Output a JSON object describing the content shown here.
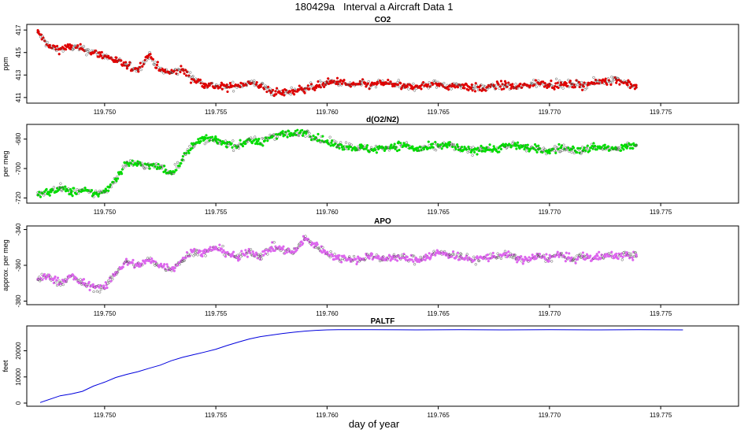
{
  "figure": {
    "title": "180429a   Interval a Aircraft Data 1",
    "xlabel": "day of year"
  },
  "chart_data": [
    {
      "type": "scatter",
      "title": "CO2",
      "ylabel": "ppm",
      "color": "#e00000",
      "xlim": [
        119.7465,
        119.7785
      ],
      "ylim": [
        410.5,
        417.5
      ],
      "xticks": [
        "119.750",
        "119.755",
        "119.760",
        "119.765",
        "119.770",
        "119.775"
      ],
      "yticks": [
        "411",
        "413",
        "415",
        "417"
      ],
      "x": [
        119.747,
        119.7475,
        119.748,
        119.7485,
        119.749,
        119.7495,
        119.75,
        119.7505,
        119.751,
        119.7515,
        119.752,
        119.7525,
        119.753,
        119.7535,
        119.754,
        119.7545,
        119.755,
        119.7555,
        119.756,
        119.7565,
        119.757,
        119.7575,
        119.758,
        119.7585,
        119.759,
        119.7595,
        119.76,
        119.7605,
        119.761,
        119.7615,
        119.762,
        119.7625,
        119.763,
        119.7635,
        119.764,
        119.7645,
        119.765,
        119.7655,
        119.766,
        119.7665,
        119.767,
        119.7675,
        119.768,
        119.7685,
        119.769,
        119.7695,
        119.77,
        119.7705,
        119.771,
        119.7715,
        119.772,
        119.7725,
        119.773,
        119.7735,
        119.7739
      ],
      "y": [
        416.8,
        415.5,
        415.3,
        415.5,
        415.3,
        415.0,
        414.7,
        414.3,
        413.8,
        413.5,
        414.8,
        413.4,
        413.2,
        413.5,
        412.6,
        412.2,
        412.0,
        411.9,
        412.1,
        412.3,
        412.1,
        411.5,
        411.4,
        411.6,
        411.8,
        412.0,
        412.3,
        412.4,
        412.1,
        412.2,
        412.1,
        412.3,
        412.2,
        411.9,
        412.0,
        412.1,
        412.2,
        412.0,
        412.1,
        411.9,
        411.8,
        412.0,
        412.1,
        411.9,
        412.1,
        412.3,
        412.2,
        412.1,
        412.2,
        412.1,
        412.3,
        412.5,
        412.6,
        412.3,
        411.9
      ]
    },
    {
      "type": "scatter",
      "title": "d(O2/N2)",
      "ylabel": "per meg",
      "color": "#00dd00",
      "xlim": [
        119.7465,
        119.7785
      ],
      "ylim": [
        -723.5,
        -670
      ],
      "xticks": [
        "119.750",
        "119.755",
        "119.760",
        "119.765",
        "119.770",
        "119.775"
      ],
      "yticks": [
        "-720",
        "-700",
        "-680"
      ],
      "x": [
        119.747,
        119.7475,
        119.748,
        119.7485,
        119.749,
        119.7495,
        119.75,
        119.7505,
        119.751,
        119.7515,
        119.752,
        119.7525,
        119.753,
        119.7535,
        119.754,
        119.7545,
        119.755,
        119.7555,
        119.756,
        119.7565,
        119.757,
        119.7575,
        119.758,
        119.7585,
        119.759,
        119.7595,
        119.76,
        119.7605,
        119.761,
        119.7615,
        119.762,
        119.7625,
        119.763,
        119.7635,
        119.764,
        119.7645,
        119.765,
        119.7655,
        119.766,
        119.7665,
        119.767,
        119.7675,
        119.768,
        119.7685,
        119.769,
        119.7695,
        119.77,
        119.7705,
        119.771,
        119.7715,
        119.772,
        119.7725,
        119.773,
        119.7735,
        119.7739
      ],
      "y": [
        -718,
        -716,
        -713,
        -716,
        -715,
        -717,
        -716,
        -707,
        -696,
        -697,
        -698,
        -699,
        -703,
        -694,
        -683,
        -680,
        -681,
        -683,
        -685,
        -680,
        -683,
        -678,
        -676,
        -677,
        -675,
        -679,
        -682,
        -684,
        -685,
        -686,
        -687,
        -686,
        -685,
        -684,
        -687,
        -686,
        -685,
        -684,
        -687,
        -688,
        -686,
        -687,
        -685,
        -684,
        -686,
        -687,
        -688,
        -686,
        -687,
        -688,
        -685,
        -686,
        -687,
        -685,
        -684
      ]
    },
    {
      "type": "scatter",
      "title": "APO",
      "ylabel": "approx. per meg",
      "color": "#dd66ee",
      "xlim": [
        119.7465,
        119.7785
      ],
      "ylim": [
        -382,
        -338
      ],
      "xticks": [
        "119.750",
        "119.755",
        "119.760",
        "119.765",
        "119.770",
        "119.775"
      ],
      "yticks": [
        "-380",
        "-360",
        "-340"
      ],
      "x": [
        119.747,
        119.7475,
        119.748,
        119.7485,
        119.749,
        119.7495,
        119.75,
        119.7505,
        119.751,
        119.7515,
        119.752,
        119.7525,
        119.753,
        119.7535,
        119.754,
        119.7545,
        119.755,
        119.7555,
        119.756,
        119.7565,
        119.757,
        119.7575,
        119.758,
        119.7585,
        119.759,
        119.7595,
        119.76,
        119.7605,
        119.761,
        119.7615,
        119.762,
        119.7625,
        119.763,
        119.7635,
        119.764,
        119.7645,
        119.765,
        119.7655,
        119.766,
        119.7665,
        119.767,
        119.7675,
        119.768,
        119.7685,
        119.769,
        119.7695,
        119.77,
        119.7705,
        119.771,
        119.7715,
        119.772,
        119.7725,
        119.773,
        119.7735,
        119.7739
      ],
      "y": [
        -368,
        -366,
        -370,
        -366,
        -370,
        -372,
        -373,
        -364,
        -358,
        -360,
        -357,
        -360,
        -362,
        -357,
        -352,
        -353,
        -350,
        -353,
        -356,
        -352,
        -355,
        -350,
        -351,
        -353,
        -345,
        -349,
        -353,
        -356,
        -356,
        -357,
        -354,
        -357,
        -355,
        -356,
        -357,
        -355,
        -353,
        -354,
        -355,
        -357,
        -356,
        -355,
        -354,
        -356,
        -357,
        -355,
        -356,
        -354,
        -357,
        -355,
        -356,
        -354,
        -355,
        -354,
        -355
      ]
    },
    {
      "type": "line",
      "title": "PALTF",
      "ylabel": "feet",
      "color": "#0000dd",
      "xlim": [
        119.7465,
        119.7785
      ],
      "ylim": [
        -1200,
        29500
      ],
      "xticks": [
        "119.750",
        "119.755",
        "119.760",
        "119.765",
        "119.770",
        "119.775"
      ],
      "yticks": [
        "0",
        "10000",
        "20000"
      ],
      "x": [
        119.7471,
        119.748,
        119.7485,
        119.749,
        119.7495,
        119.75,
        119.7505,
        119.751,
        119.7515,
        119.752,
        119.7525,
        119.753,
        119.7535,
        119.754,
        119.7545,
        119.755,
        119.7555,
        119.756,
        119.7565,
        119.757,
        119.7575,
        119.758,
        119.7585,
        119.759,
        119.7595,
        119.76,
        119.7605,
        119.761,
        119.762,
        119.764,
        119.766,
        119.768,
        119.77,
        119.772,
        119.774,
        119.776
      ],
      "y": [
        200,
        2800,
        3500,
        4500,
        6500,
        8000,
        9800,
        11000,
        12000,
        13300,
        14500,
        16200,
        17500,
        18500,
        19500,
        20600,
        22000,
        23300,
        24500,
        25400,
        26000,
        26600,
        27100,
        27500,
        27800,
        28000,
        28100,
        28100,
        28100,
        28000,
        28100,
        28000,
        28100,
        28000,
        28100,
        28000
      ]
    }
  ]
}
